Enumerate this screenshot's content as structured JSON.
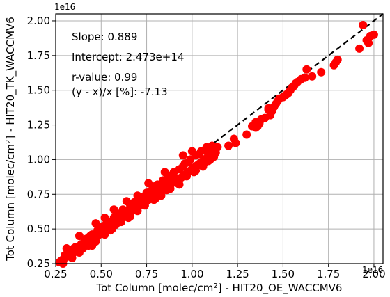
{
  "chart_data": {
    "type": "scatter",
    "xlabel_pre": "Tot Column [molec/cm",
    "xlabel_sup": "2",
    "xlabel_post": "] - HIT20_OE_WACCMV6",
    "ylabel_pre": "Tot Column [molec/cm",
    "ylabel_sup": "2",
    "ylabel_post": "] - HIT20_TK_WACCMV6",
    "x_offset_label": "1e16",
    "y_offset_label": "1e16",
    "xlim": [
      0.25,
      2.05
    ],
    "ylim": [
      0.25,
      2.05
    ],
    "xticks": [
      "0.25",
      "0.50",
      "0.75",
      "1.00",
      "1.25",
      "1.50",
      "1.75",
      "2.00"
    ],
    "yticks": [
      "0.25",
      "0.50",
      "0.75",
      "1.00",
      "1.25",
      "1.50",
      "1.75",
      "2.00"
    ],
    "grid": true,
    "reference_line": "1:1 dashed black",
    "point_color": "#ff0000",
    "annotations": {
      "slope": "Slope: 0.889",
      "intercept": "Intercept: 2.473e+14",
      "rvalue": "r-value: 0.99",
      "reldiff": "(y - x)/x [%]: -7.13"
    },
    "points": [
      [
        0.27,
        0.26
      ],
      [
        0.28,
        0.27
      ],
      [
        0.29,
        0.28
      ],
      [
        0.3,
        0.29
      ],
      [
        0.31,
        0.3
      ],
      [
        0.32,
        0.31
      ],
      [
        0.33,
        0.31
      ],
      [
        0.34,
        0.32
      ],
      [
        0.35,
        0.33
      ],
      [
        0.36,
        0.34
      ],
      [
        0.37,
        0.35
      ],
      [
        0.38,
        0.36
      ],
      [
        0.39,
        0.37
      ],
      [
        0.4,
        0.38
      ],
      [
        0.41,
        0.39
      ],
      [
        0.42,
        0.4
      ],
      [
        0.43,
        0.41
      ],
      [
        0.44,
        0.42
      ],
      [
        0.45,
        0.42
      ],
      [
        0.46,
        0.43
      ],
      [
        0.47,
        0.44
      ],
      [
        0.48,
        0.45
      ],
      [
        0.49,
        0.46
      ],
      [
        0.5,
        0.47
      ],
      [
        0.51,
        0.48
      ],
      [
        0.52,
        0.49
      ],
      [
        0.53,
        0.5
      ],
      [
        0.54,
        0.51
      ],
      [
        0.55,
        0.52
      ],
      [
        0.56,
        0.53
      ],
      [
        0.57,
        0.54
      ],
      [
        0.58,
        0.55
      ],
      [
        0.59,
        0.56
      ],
      [
        0.6,
        0.57
      ],
      [
        0.61,
        0.57
      ],
      [
        0.62,
        0.58
      ],
      [
        0.63,
        0.59
      ],
      [
        0.64,
        0.6
      ],
      [
        0.65,
        0.61
      ],
      [
        0.66,
        0.62
      ],
      [
        0.67,
        0.63
      ],
      [
        0.68,
        0.64
      ],
      [
        0.69,
        0.65
      ],
      [
        0.7,
        0.66
      ],
      [
        0.71,
        0.67
      ],
      [
        0.72,
        0.68
      ],
      [
        0.73,
        0.69
      ],
      [
        0.74,
        0.7
      ],
      [
        0.75,
        0.71
      ],
      [
        0.76,
        0.71
      ],
      [
        0.77,
        0.72
      ],
      [
        0.78,
        0.73
      ],
      [
        0.79,
        0.74
      ],
      [
        0.8,
        0.75
      ],
      [
        0.81,
        0.76
      ],
      [
        0.82,
        0.77
      ],
      [
        0.83,
        0.78
      ],
      [
        0.84,
        0.79
      ],
      [
        0.85,
        0.8
      ],
      [
        0.86,
        0.8
      ],
      [
        0.87,
        0.81
      ],
      [
        0.88,
        0.82
      ],
      [
        0.89,
        0.83
      ],
      [
        0.9,
        0.84
      ],
      [
        0.91,
        0.85
      ],
      [
        0.92,
        0.86
      ],
      [
        0.93,
        0.86
      ],
      [
        0.94,
        0.87
      ],
      [
        0.95,
        0.88
      ],
      [
        0.96,
        0.89
      ],
      [
        0.97,
        0.9
      ],
      [
        0.98,
        0.91
      ],
      [
        0.99,
        0.92
      ],
      [
        1.0,
        0.93
      ],
      [
        1.01,
        0.94
      ],
      [
        1.02,
        0.95
      ],
      [
        1.03,
        0.96
      ],
      [
        1.04,
        0.97
      ],
      [
        1.05,
        0.98
      ],
      [
        1.06,
        0.99
      ],
      [
        1.07,
        1.0
      ],
      [
        1.08,
        1.01
      ],
      [
        1.09,
        1.02
      ],
      [
        1.1,
        1.03
      ],
      [
        1.11,
        1.04
      ],
      [
        1.12,
        1.05
      ],
      [
        0.3,
        0.31
      ],
      [
        0.33,
        0.34
      ],
      [
        0.36,
        0.37
      ],
      [
        0.39,
        0.39
      ],
      [
        0.42,
        0.43
      ],
      [
        0.45,
        0.46
      ],
      [
        0.48,
        0.49
      ],
      [
        0.51,
        0.52
      ],
      [
        0.54,
        0.55
      ],
      [
        0.57,
        0.58
      ],
      [
        0.6,
        0.61
      ],
      [
        0.63,
        0.63
      ],
      [
        0.66,
        0.67
      ],
      [
        0.69,
        0.7
      ],
      [
        0.72,
        0.73
      ],
      [
        0.75,
        0.76
      ],
      [
        0.78,
        0.78
      ],
      [
        0.81,
        0.82
      ],
      [
        0.84,
        0.85
      ],
      [
        0.87,
        0.88
      ],
      [
        0.9,
        0.91
      ],
      [
        0.93,
        0.93
      ],
      [
        0.96,
        0.97
      ],
      [
        0.99,
        1.0
      ],
      [
        1.02,
        1.03
      ],
      [
        1.05,
        1.06
      ],
      [
        1.08,
        1.09
      ],
      [
        1.11,
        1.1
      ],
      [
        0.29,
        0.25
      ],
      [
        0.34,
        0.29
      ],
      [
        0.38,
        0.33
      ],
      [
        0.43,
        0.38
      ],
      [
        0.47,
        0.41
      ],
      [
        0.52,
        0.46
      ],
      [
        0.56,
        0.5
      ],
      [
        0.61,
        0.55
      ],
      [
        0.65,
        0.58
      ],
      [
        0.7,
        0.63
      ],
      [
        0.74,
        0.67
      ],
      [
        0.79,
        0.71
      ],
      [
        0.83,
        0.74
      ],
      [
        0.88,
        0.79
      ],
      [
        0.92,
        0.83
      ],
      [
        0.97,
        0.88
      ],
      [
        1.01,
        0.91
      ],
      [
        1.06,
        0.95
      ],
      [
        0.32,
        0.33
      ],
      [
        0.35,
        0.36
      ],
      [
        0.41,
        0.42
      ],
      [
        0.44,
        0.45
      ],
      [
        0.5,
        0.51
      ],
      [
        0.53,
        0.54
      ],
      [
        0.59,
        0.6
      ],
      [
        0.62,
        0.64
      ],
      [
        0.68,
        0.69
      ],
      [
        0.71,
        0.72
      ],
      [
        0.77,
        0.77
      ],
      [
        0.8,
        0.81
      ],
      [
        0.86,
        0.86
      ],
      [
        0.89,
        0.89
      ],
      [
        0.95,
        0.95
      ],
      [
        0.98,
        0.98
      ],
      [
        1.04,
        1.04
      ],
      [
        1.1,
        1.08
      ],
      [
        0.57,
        0.64
      ],
      [
        0.7,
        0.74
      ],
      [
        0.52,
        0.58
      ],
      [
        0.85,
        0.91
      ],
      [
        0.38,
        0.45
      ],
      [
        0.47,
        0.54
      ],
      [
        0.95,
        1.03
      ],
      [
        0.64,
        0.7
      ],
      [
        1.0,
        1.06
      ],
      [
        0.31,
        0.36
      ],
      [
        0.76,
        0.83
      ],
      [
        0.58,
        0.53
      ],
      [
        0.66,
        0.59
      ],
      [
        0.45,
        0.38
      ],
      [
        0.93,
        0.82
      ],
      [
        0.8,
        0.72
      ],
      [
        1.02,
        0.92
      ],
      [
        0.86,
        0.78
      ],
      [
        0.4,
        0.36
      ],
      [
        0.55,
        0.49
      ],
      [
        1.13,
        1.05
      ],
      [
        1.2,
        1.1
      ],
      [
        1.23,
        1.15
      ],
      [
        1.24,
        1.12
      ],
      [
        1.3,
        1.18
      ],
      [
        1.33,
        1.24
      ],
      [
        1.35,
        1.27
      ],
      [
        1.36,
        1.24
      ],
      [
        1.37,
        1.26
      ],
      [
        1.4,
        1.3
      ],
      [
        1.42,
        1.37
      ],
      [
        1.43,
        1.32
      ],
      [
        1.45,
        1.38
      ],
      [
        1.46,
        1.4
      ],
      [
        1.47,
        1.42
      ],
      [
        1.48,
        1.44
      ],
      [
        1.5,
        1.45
      ],
      [
        1.52,
        1.47
      ],
      [
        1.53,
        1.48
      ],
      [
        1.54,
        1.5
      ],
      [
        1.55,
        1.52
      ],
      [
        1.56,
        1.53
      ],
      [
        1.57,
        1.55
      ],
      [
        1.58,
        1.56
      ],
      [
        1.6,
        1.58
      ],
      [
        1.62,
        1.59
      ],
      [
        1.63,
        1.65
      ],
      [
        1.66,
        1.6
      ],
      [
        1.71,
        1.63
      ],
      [
        1.78,
        1.68
      ],
      [
        1.79,
        1.7
      ],
      [
        1.8,
        1.72
      ],
      [
        1.92,
        1.8
      ],
      [
        1.94,
        1.97
      ],
      [
        1.96,
        1.86
      ],
      [
        1.97,
        1.84
      ],
      [
        1.98,
        1.89
      ],
      [
        2.0,
        1.9
      ],
      [
        1.13,
        1.09
      ],
      [
        1.11,
        1.08
      ],
      [
        1.12,
        1.02
      ],
      [
        1.1,
        1.0
      ],
      [
        1.07,
        0.98
      ],
      [
        1.05,
        0.96
      ],
      [
        1.08,
        1.06
      ],
      [
        1.09,
        0.99
      ],
      [
        1.14,
        1.09
      ],
      [
        1.38,
        1.29
      ],
      [
        1.35,
        1.23
      ],
      [
        1.44,
        1.35
      ],
      [
        1.51,
        1.46
      ],
      [
        1.42,
        1.36
      ]
    ]
  }
}
